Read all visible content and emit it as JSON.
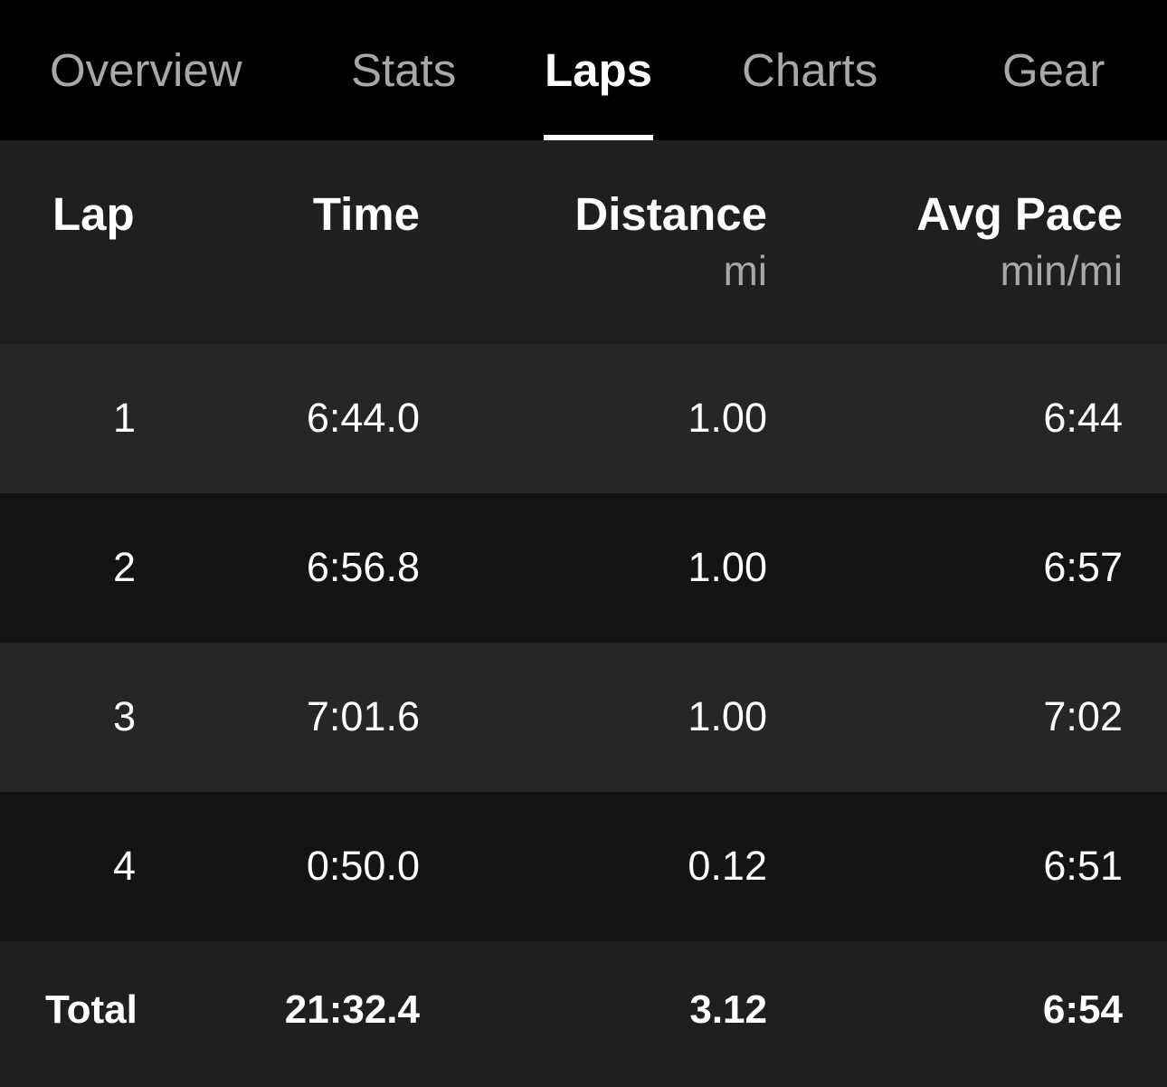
{
  "tabs": [
    {
      "label": "Overview"
    },
    {
      "label": "Stats"
    },
    {
      "label": "Laps",
      "active": true
    },
    {
      "label": "Charts"
    },
    {
      "label": "Gear"
    }
  ],
  "table": {
    "headers": {
      "lap": "Lap",
      "time": "Time",
      "distance": "Distance",
      "distance_unit": "mi",
      "pace": "Avg Pace",
      "pace_unit": "min/mi"
    },
    "rows": [
      {
        "lap": "1",
        "time": "6:44.0",
        "distance": "1.00",
        "pace": "6:44"
      },
      {
        "lap": "2",
        "time": "6:56.8",
        "distance": "1.00",
        "pace": "6:57"
      },
      {
        "lap": "3",
        "time": "7:01.6",
        "distance": "1.00",
        "pace": "7:02"
      },
      {
        "lap": "4",
        "time": "0:50.0",
        "distance": "0.12",
        "pace": "6:51"
      }
    ],
    "total": {
      "label": "Total",
      "time": "21:32.4",
      "distance": "3.12",
      "pace": "6:54"
    }
  }
}
